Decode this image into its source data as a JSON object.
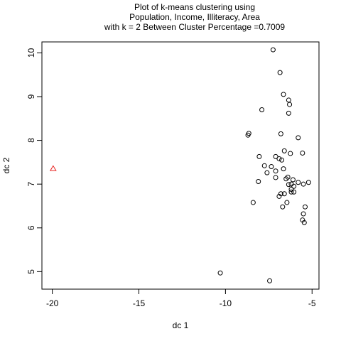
{
  "chart_data": {
    "type": "scatter",
    "title_lines": [
      "Plot of k-means clustering using",
      "Population, Income, Illiteracy, Area",
      "with  k = 2 Between Cluster Percentage =0.7009"
    ],
    "xlabel": "dc 1",
    "ylabel": "dc 2",
    "xlim": [
      -20.6,
      -4.6
    ],
    "ylim": [
      4.6,
      10.25
    ],
    "xticks": [
      -20,
      -15,
      -10,
      -5
    ],
    "yticks": [
      5,
      6,
      7,
      8,
      9,
      10
    ],
    "grid": false,
    "series": [
      {
        "marker": "circle",
        "color": "#000000",
        "points": [
          [
            -7.25,
            10.07
          ],
          [
            -6.85,
            9.55
          ],
          [
            -6.65,
            9.05
          ],
          [
            -6.35,
            8.92
          ],
          [
            -6.3,
            8.82
          ],
          [
            -7.9,
            8.7
          ],
          [
            -6.35,
            8.62
          ],
          [
            -8.7,
            8.12
          ],
          [
            -8.65,
            8.16
          ],
          [
            -6.8,
            8.15
          ],
          [
            -5.8,
            8.06
          ],
          [
            -6.6,
            7.76
          ],
          [
            -6.25,
            7.7
          ],
          [
            -5.55,
            7.71
          ],
          [
            -7.1,
            7.63
          ],
          [
            -8.05,
            7.63
          ],
          [
            -6.9,
            7.58
          ],
          [
            -6.75,
            7.55
          ],
          [
            -7.75,
            7.42
          ],
          [
            -7.35,
            7.4
          ],
          [
            -6.65,
            7.35
          ],
          [
            -7.1,
            7.3
          ],
          [
            -7.6,
            7.26
          ],
          [
            -6.4,
            7.16
          ],
          [
            -7.1,
            7.15
          ],
          [
            -6.5,
            7.12
          ],
          [
            -6.1,
            7.1
          ],
          [
            -8.1,
            7.06
          ],
          [
            -5.8,
            7.04
          ],
          [
            -5.2,
            7.04
          ],
          [
            -6.2,
            7.0
          ],
          [
            -6.35,
            6.99
          ],
          [
            -5.5,
            7.0
          ],
          [
            -6.05,
            6.95
          ],
          [
            -6.2,
            6.88
          ],
          [
            -6.2,
            6.82
          ],
          [
            -6.05,
            6.82
          ],
          [
            -6.6,
            6.78
          ],
          [
            -6.8,
            6.78
          ],
          [
            -6.9,
            6.72
          ],
          [
            -8.4,
            6.58
          ],
          [
            -6.45,
            6.58
          ],
          [
            -5.4,
            6.48
          ],
          [
            -6.7,
            6.48
          ],
          [
            -5.5,
            6.32
          ],
          [
            -5.55,
            6.18
          ],
          [
            -5.45,
            6.12
          ],
          [
            -10.3,
            4.97
          ],
          [
            -7.45,
            4.79
          ]
        ]
      },
      {
        "marker": "triangle",
        "color": "#e8201e",
        "points": [
          [
            -19.95,
            7.35
          ]
        ]
      }
    ]
  }
}
